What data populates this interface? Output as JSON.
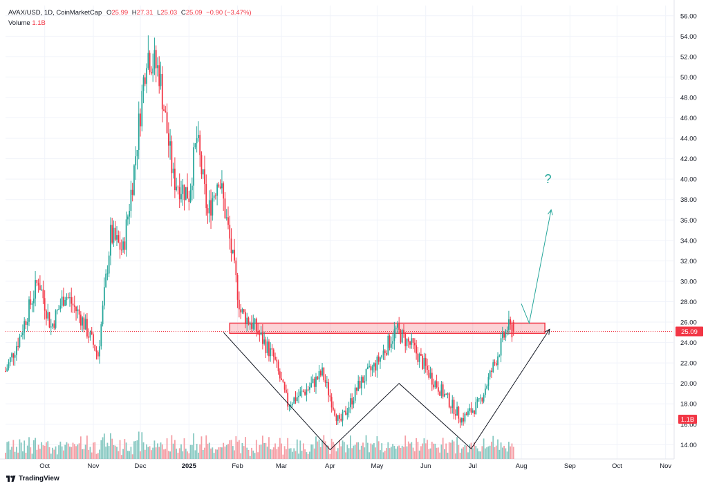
{
  "header": {
    "symbol": "AVAX/USD, 1D, CoinMarketCap",
    "open_label": "O",
    "open": "25.99",
    "high_label": "H",
    "high": "27.31",
    "low_label": "L",
    "low": "25.03",
    "close_label": "C",
    "close": "25.09",
    "change": "−0.90 (−3.47%)",
    "volume_label": "Volume",
    "volume": "1.1B"
  },
  "brand": "TradingView",
  "colors": {
    "up": "#26a69a",
    "down": "#f23645",
    "vol_up": "#86c8c1",
    "vol_down": "#f59ea5",
    "zone": "#f23645",
    "projection": "#26a69a",
    "pattern": "#131722"
  },
  "chart_data": {
    "type": "candlestick",
    "symbol": "AVAX/USD",
    "timeframe": "1D",
    "ylim": [
      12.6,
      57.0
    ],
    "y_ticks": [
      14,
      16,
      18,
      20,
      22,
      24,
      26,
      28,
      30,
      32,
      34,
      36,
      38,
      40,
      42,
      44,
      46,
      48,
      50,
      52,
      54,
      56
    ],
    "x_ticks": [
      {
        "label": "Oct",
        "date": "2024-10-01"
      },
      {
        "label": "Nov",
        "date": "2024-11-01"
      },
      {
        "label": "Dec",
        "date": "2024-12-01"
      },
      {
        "label": "2025",
        "date": "2025-01-01"
      },
      {
        "label": "Feb",
        "date": "2025-02-01"
      },
      {
        "label": "Mar",
        "date": "2025-03-01"
      },
      {
        "label": "Apr",
        "date": "2025-04-01"
      },
      {
        "label": "May",
        "date": "2025-05-01"
      },
      {
        "label": "Jun",
        "date": "2025-06-01"
      },
      {
        "label": "Jul",
        "date": "2025-07-01"
      },
      {
        "label": "Aug",
        "date": "2025-08-01"
      },
      {
        "label": "Sep",
        "date": "2025-09-01"
      },
      {
        "label": "Oct",
        "date": "2025-10-01"
      },
      {
        "label": "Nov",
        "date": "2025-11-01"
      }
    ],
    "x_range": [
      "2024-09-06",
      "2025-11-06"
    ],
    "data_start": "2024-09-06",
    "data_end": "2025-07-27",
    "price_path": [
      {
        "date": "2024-09-06",
        "price": 21.2
      },
      {
        "date": "2024-09-15",
        "price": 24.5
      },
      {
        "date": "2024-09-27",
        "price": 30.2
      },
      {
        "date": "2024-10-05",
        "price": 25.5
      },
      {
        "date": "2024-10-14",
        "price": 28.8
      },
      {
        "date": "2024-10-24",
        "price": 26.5
      },
      {
        "date": "2024-11-04",
        "price": 22.8
      },
      {
        "date": "2024-11-12",
        "price": 34.5
      },
      {
        "date": "2024-11-20",
        "price": 33.0
      },
      {
        "date": "2024-11-27",
        "price": 41.0
      },
      {
        "date": "2024-12-05",
        "price": 52.5
      },
      {
        "date": "2024-12-13",
        "price": 50.5
      },
      {
        "date": "2024-12-22",
        "price": 40.0
      },
      {
        "date": "2025-01-01",
        "price": 38.5
      },
      {
        "date": "2025-01-06",
        "price": 44.0
      },
      {
        "date": "2025-01-13",
        "price": 36.5
      },
      {
        "date": "2025-01-20",
        "price": 40.5
      },
      {
        "date": "2025-01-26",
        "price": 35.0
      },
      {
        "date": "2025-02-03",
        "price": 27.0
      },
      {
        "date": "2025-02-12",
        "price": 25.5
      },
      {
        "date": "2025-02-24",
        "price": 22.5
      },
      {
        "date": "2025-03-05",
        "price": 18.0
      },
      {
        "date": "2025-03-18",
        "price": 19.5
      },
      {
        "date": "2025-03-27",
        "price": 21.0
      },
      {
        "date": "2025-04-07",
        "price": 16.0
      },
      {
        "date": "2025-04-20",
        "price": 20.0
      },
      {
        "date": "2025-05-01",
        "price": 22.0
      },
      {
        "date": "2025-05-13",
        "price": 25.2
      },
      {
        "date": "2025-05-24",
        "price": 23.5
      },
      {
        "date": "2025-06-05",
        "price": 20.5
      },
      {
        "date": "2025-06-17",
        "price": 18.0
      },
      {
        "date": "2025-06-24",
        "price": 16.5
      },
      {
        "date": "2025-07-05",
        "price": 18.0
      },
      {
        "date": "2025-07-15",
        "price": 22.0
      },
      {
        "date": "2025-07-23",
        "price": 25.5
      },
      {
        "date": "2025-07-27",
        "price": 25.09
      }
    ],
    "resistance_zone": {
      "from": "2025-01-27",
      "to": "2025-08-16",
      "low": 24.9,
      "high": 25.9
    },
    "current_price_line": 25.09,
    "last_price_label": "25.09",
    "volume_label": "1.1B",
    "pattern_lines": [
      {
        "points": [
          [
            "2025-01-23",
            25.0
          ],
          [
            "2025-04-01",
            13.5
          ],
          [
            "2025-05-15",
            20.0
          ],
          [
            "2025-06-30",
            13.6
          ],
          [
            "2025-08-19",
            25.3
          ]
        ]
      }
    ],
    "projection": [
      [
        "2025-08-01",
        27.8
      ],
      [
        "2025-08-06",
        25.9
      ],
      [
        "2025-08-20",
        37.0
      ]
    ],
    "annotation": {
      "text": "?",
      "date": "2025-08-18",
      "price": 39.6
    }
  }
}
